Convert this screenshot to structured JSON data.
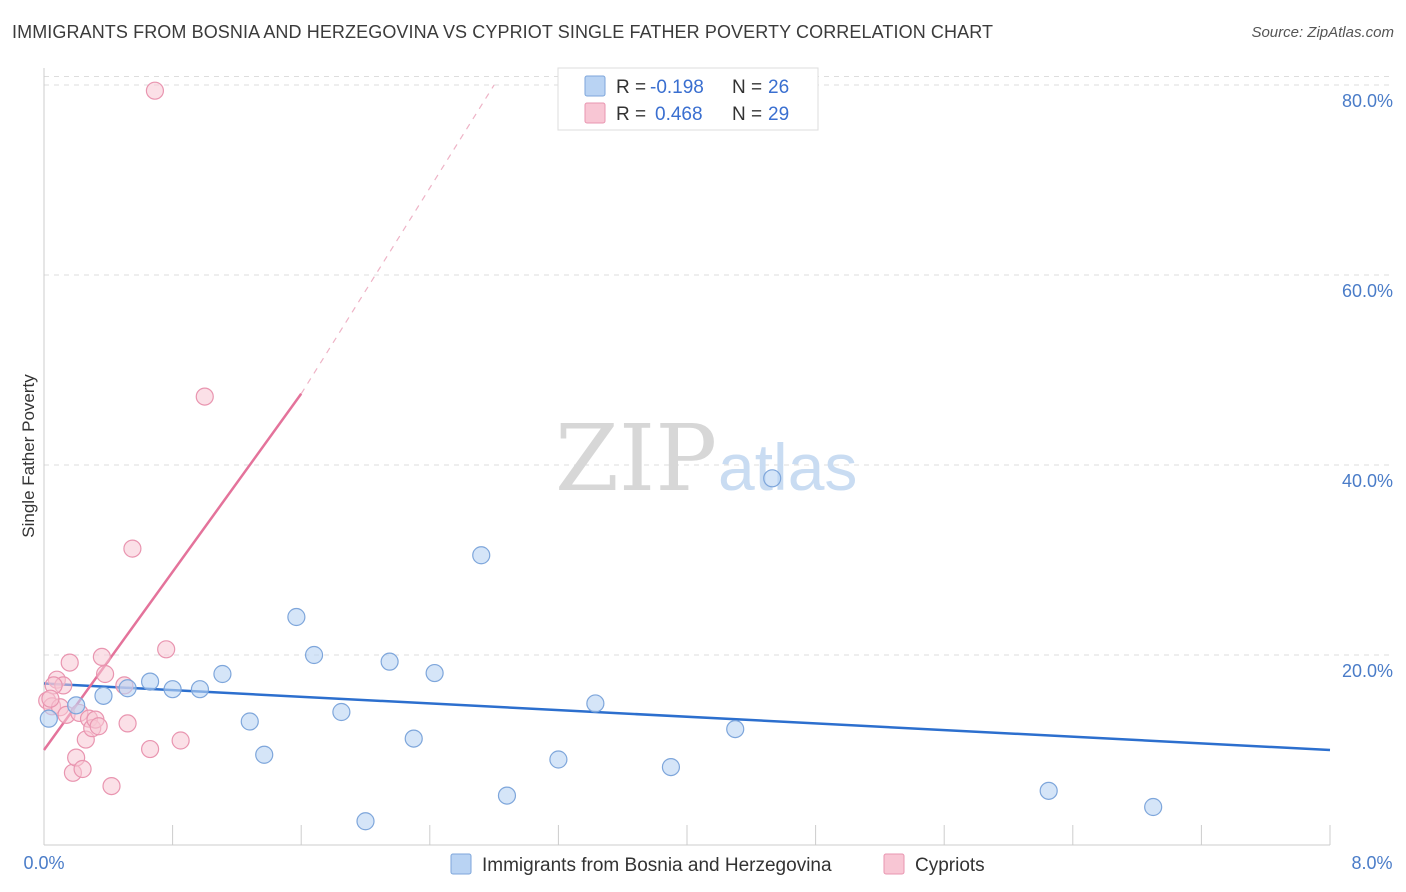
{
  "title": "IMMIGRANTS FROM BOSNIA AND HERZEGOVINA VS CYPRIOT SINGLE FATHER POVERTY CORRELATION CHART",
  "source": "Source: ZipAtlas.com",
  "watermark": {
    "zip": "ZIP",
    "atlas": "atlas"
  },
  "colors": {
    "blue_fill": "#b9d3f3",
    "blue_stroke": "#7ea6db",
    "blue_line": "#2c6fce",
    "pink_fill": "#f8c6d4",
    "pink_stroke": "#e995b0",
    "pink_line": "#e4739b",
    "grid": "#dddddd",
    "tick_text": "#4a7cc8"
  },
  "legend": {
    "rows": [
      {
        "r_label": "R = ",
        "r_value": "-0.198",
        "n_label": "N = ",
        "n_value": "26",
        "swatch": "blue"
      },
      {
        "r_label": "R = ",
        "r_value": " 0.468",
        "n_label": "N = ",
        "n_value": "29",
        "swatch": "pink"
      }
    ]
  },
  "chart_data": {
    "type": "scatter",
    "title": "IMMIGRANTS FROM BOSNIA AND HERZEGOVINA VS CYPRIOT SINGLE FATHER POVERTY CORRELATION CHART",
    "xlabel": "",
    "ylabel": "Single Father Poverty",
    "xlim": [
      0,
      8
    ],
    "ylim": [
      0,
      82
    ],
    "x_tick_labels": [
      "0.0%",
      "8.0%"
    ],
    "y_ticks": [
      20,
      40,
      60,
      80
    ],
    "y_tick_labels": [
      "20.0%",
      "40.0%",
      "60.0%",
      "80.0%"
    ],
    "grid": true,
    "series": [
      {
        "name": "Immigrants from Bosnia and Herzegovina",
        "color": "blue",
        "points": [
          [
            0.03,
            13.3
          ],
          [
            0.2,
            14.7
          ],
          [
            0.37,
            15.7
          ],
          [
            0.52,
            16.5
          ],
          [
            0.66,
            17.2
          ],
          [
            0.8,
            16.4
          ],
          [
            0.97,
            16.4
          ],
          [
            1.11,
            18.0
          ],
          [
            1.28,
            13.0
          ],
          [
            1.37,
            9.5
          ],
          [
            1.57,
            24.0
          ],
          [
            1.68,
            20.0
          ],
          [
            1.85,
            14.0
          ],
          [
            2.0,
            2.5
          ],
          [
            2.15,
            19.3
          ],
          [
            2.3,
            11.2
          ],
          [
            2.43,
            18.1
          ],
          [
            2.72,
            30.5
          ],
          [
            2.88,
            5.2
          ],
          [
            3.2,
            9.0
          ],
          [
            3.43,
            14.9
          ],
          [
            3.9,
            8.2
          ],
          [
            4.3,
            12.2
          ],
          [
            4.53,
            38.6
          ],
          [
            6.25,
            5.7
          ],
          [
            6.9,
            4.0
          ]
        ],
        "trend": {
          "x": [
            0,
            8
          ],
          "y": [
            17.0,
            10.0
          ]
        }
      },
      {
        "name": "Cypriots",
        "color": "pink",
        "points": [
          [
            0.02,
            15.2
          ],
          [
            0.05,
            14.6
          ],
          [
            0.08,
            17.4
          ],
          [
            0.1,
            14.5
          ],
          [
            0.12,
            16.8
          ],
          [
            0.14,
            13.7
          ],
          [
            0.16,
            19.2
          ],
          [
            0.18,
            7.6
          ],
          [
            0.2,
            9.2
          ],
          [
            0.22,
            13.9
          ],
          [
            0.24,
            8.0
          ],
          [
            0.26,
            11.1
          ],
          [
            0.28,
            13.3
          ],
          [
            0.3,
            12.3
          ],
          [
            0.32,
            13.2
          ],
          [
            0.34,
            12.5
          ],
          [
            0.36,
            19.8
          ],
          [
            0.38,
            18.0
          ],
          [
            0.42,
            6.2
          ],
          [
            0.5,
            16.8
          ],
          [
            0.52,
            12.8
          ],
          [
            0.55,
            31.2
          ],
          [
            0.66,
            10.1
          ],
          [
            0.69,
            79.4
          ],
          [
            0.76,
            20.6
          ],
          [
            0.85,
            11.0
          ],
          [
            1.0,
            47.2
          ],
          [
            0.06,
            16.8
          ],
          [
            0.04,
            15.4
          ]
        ],
        "trend": {
          "x": [
            0,
            1.6
          ],
          "y": [
            10.0,
            47.5
          ]
        },
        "trend_dashed": {
          "x": [
            1.6,
            2.8
          ],
          "y": [
            47.5,
            80.0
          ]
        }
      }
    ]
  },
  "bottom_legend": [
    {
      "label": "Immigrants from Bosnia and Herzegovina",
      "swatch": "blue"
    },
    {
      "label": "Cypriots",
      "swatch": "pink"
    }
  ]
}
